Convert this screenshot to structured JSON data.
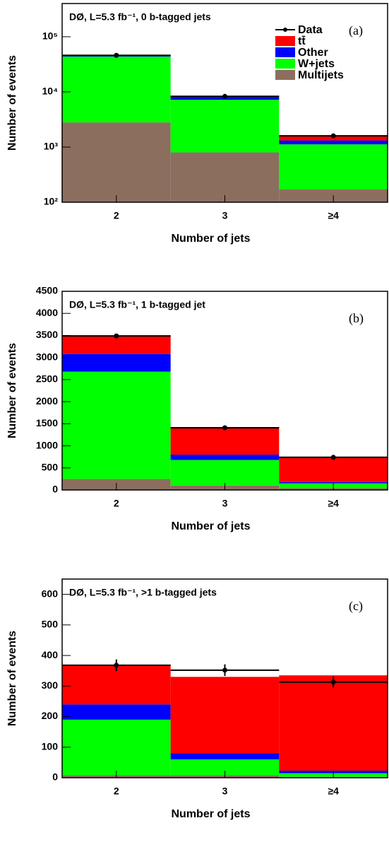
{
  "chart_data": [
    {
      "type": "stacked-bar",
      "title": "DØ, L=5.3 fb⁻¹, 0 b-tagged jets",
      "panel_label": "(a)",
      "x_label": "Number of jets",
      "y_label": "Number of events",
      "categories": [
        "2",
        "3",
        "≥4"
      ],
      "log_scale": true,
      "legend": "upper right",
      "ylim": [
        100,
        400000
      ],
      "yticks": [
        {
          "value": 100,
          "label": "10²"
        },
        {
          "value": 1000,
          "label": "10³"
        },
        {
          "value": 10000,
          "label": "10⁴"
        },
        {
          "value": 100000,
          "label": "10⁵"
        }
      ],
      "series": [
        {
          "name": "Multijets",
          "color": "#8c6e5f",
          "values": [
            2800,
            800,
            170
          ]
        },
        {
          "name": "W+jets",
          "color": "#00ff00",
          "values": [
            41000,
            6400,
            950
          ]
        },
        {
          "name": "Other",
          "color": "#0000ff",
          "values": [
            2500,
            900,
            200
          ]
        },
        {
          "name": "tt̄",
          "color": "#ff0000",
          "values": [
            200,
            300,
            300
          ]
        }
      ],
      "data": {
        "name": "Data",
        "color": "#000000",
        "values": [
          46000,
          8300,
          1600
        ]
      }
    },
    {
      "type": "stacked-bar",
      "title": "DØ, L=5.3 fb⁻¹, 1 b-tagged jet",
      "panel_label": "(b)",
      "x_label": "Number of jets",
      "y_label": "Number of events",
      "categories": [
        "2",
        "3",
        "≥4"
      ],
      "log_scale": false,
      "ylim": [
        0,
        4500
      ],
      "yticks": [
        0,
        500,
        1000,
        1500,
        2000,
        2500,
        3000,
        3500,
        4000,
        4500
      ],
      "series": [
        {
          "color": "#8c6e5f",
          "values": [
            250,
            100,
            40
          ]
        },
        {
          "color": "#00ff00",
          "values": [
            2430,
            580,
            110
          ]
        },
        {
          "color": "#0000ff",
          "values": [
            400,
            120,
            30
          ]
        },
        {
          "color": "#ff0000",
          "values": [
            420,
            620,
            560
          ]
        }
      ],
      "data": {
        "color": "#000000",
        "values": [
          3490,
          1410,
          740
        ]
      }
    },
    {
      "type": "stacked-bar",
      "title": "DØ, L=5.3 fb⁻¹, >1 b-tagged jets",
      "panel_label": "(c)",
      "x_label": "Number of jets",
      "y_label": "Number of events",
      "categories": [
        "2",
        "3",
        "≥4"
      ],
      "log_scale": false,
      "ylim": [
        0,
        650
      ],
      "yticks": [
        0,
        100,
        200,
        300,
        400,
        500,
        600
      ],
      "series": [
        {
          "color": "#8c6e5f",
          "values": [
            8,
            8,
            3
          ]
        },
        {
          "color": "#00ff00",
          "values": [
            182,
            52,
            12
          ]
        },
        {
          "color": "#0000ff",
          "values": [
            50,
            20,
            8
          ]
        },
        {
          "color": "#ff0000",
          "values": [
            130,
            250,
            312
          ]
        }
      ],
      "data": {
        "color": "#000000",
        "values": [
          368,
          352,
          313
        ],
        "errors": [
          19,
          19,
          18
        ]
      }
    }
  ]
}
